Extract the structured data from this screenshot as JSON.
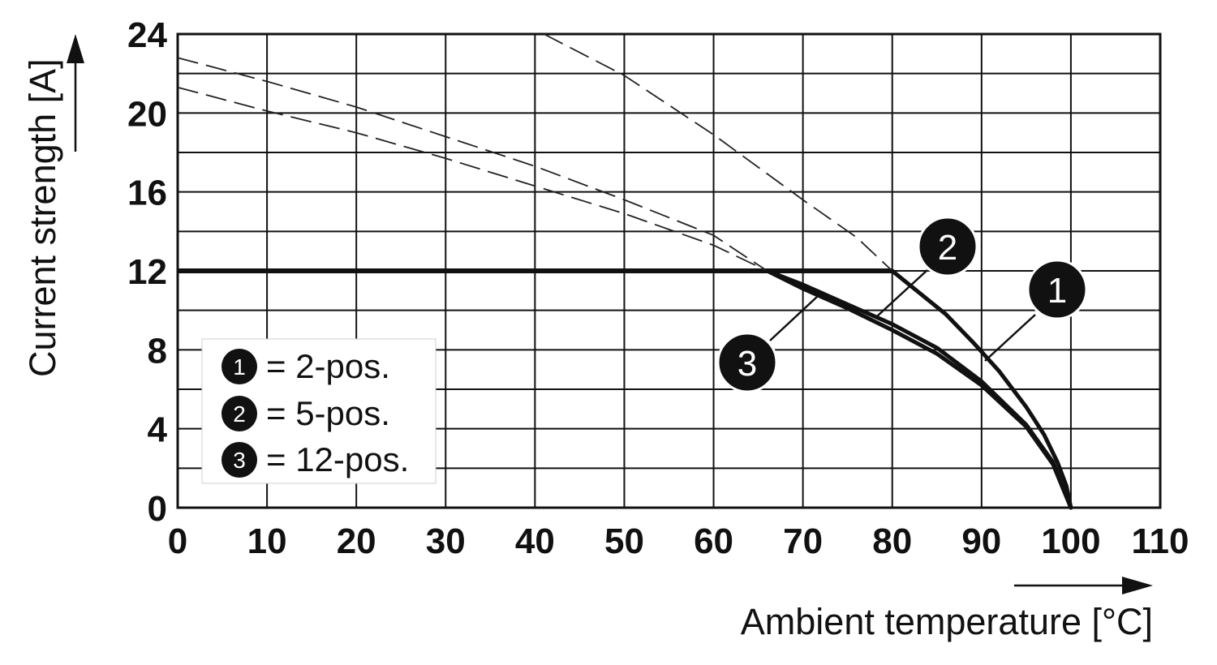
{
  "chart_data": {
    "type": "line",
    "xlabel": "Ambient temperature [°C]",
    "ylabel": "Current strength [A]",
    "xlim": [
      0,
      110
    ],
    "ylim": [
      0,
      24
    ],
    "x_ticks": [
      0,
      10,
      20,
      30,
      40,
      50,
      60,
      70,
      80,
      90,
      100,
      110
    ],
    "y_ticks": [
      0,
      4,
      8,
      12,
      16,
      20,
      24
    ],
    "y_ticks_labeled": [
      0,
      4,
      8,
      12,
      16,
      20,
      24
    ],
    "grid": true,
    "grid_y_step": 2,
    "limit_line": {
      "y": 12,
      "x": [
        0,
        80
      ]
    },
    "series": [
      {
        "name": "1",
        "legend": "= 2-pos.",
        "derating": [
          [
            80,
            12
          ],
          [
            83,
            10.9
          ],
          [
            86,
            9.8
          ],
          [
            89,
            8.4
          ],
          [
            92,
            6.9
          ],
          [
            95,
            5.1
          ],
          [
            97,
            3.7
          ],
          [
            98.5,
            2.3
          ],
          [
            99.5,
            1.1
          ],
          [
            100,
            0
          ]
        ],
        "dashed": [
          [
            41,
            24
          ],
          [
            50,
            21.9
          ],
          [
            60,
            18.9
          ],
          [
            70,
            15.6
          ],
          [
            76,
            13.7
          ],
          [
            80,
            12
          ]
        ]
      },
      {
        "name": "2",
        "legend": "= 5-pos.",
        "derating": [
          [
            66,
            12
          ],
          [
            70,
            11.3
          ],
          [
            75,
            10.3
          ],
          [
            80,
            9.3
          ],
          [
            85,
            8.1
          ],
          [
            90,
            6.4
          ],
          [
            95,
            4.2
          ],
          [
            98,
            2.3
          ],
          [
            100,
            0
          ]
        ],
        "dashed": [
          [
            0,
            22.8
          ],
          [
            10,
            21.6
          ],
          [
            20,
            20.3
          ],
          [
            30,
            18.8
          ],
          [
            40,
            17.3
          ],
          [
            50,
            15.6
          ],
          [
            60,
            13.8
          ],
          [
            66,
            12
          ]
        ]
      },
      {
        "name": "3",
        "legend": "= 12-pos.",
        "derating": [
          [
            66,
            12
          ],
          [
            70,
            11.1
          ],
          [
            75,
            10.1
          ],
          [
            80,
            9.0
          ],
          [
            85,
            7.8
          ],
          [
            90,
            6.2
          ],
          [
            95,
            4.1
          ],
          [
            98,
            2.2
          ],
          [
            100,
            0
          ]
        ],
        "dashed": [
          [
            0,
            21.3
          ],
          [
            10,
            20.1
          ],
          [
            20,
            19.0
          ],
          [
            30,
            17.7
          ],
          [
            40,
            16.3
          ],
          [
            50,
            14.9
          ],
          [
            60,
            13.3
          ],
          [
            66,
            12
          ]
        ]
      }
    ],
    "legend": {
      "placement": "bottom-left"
    }
  }
}
